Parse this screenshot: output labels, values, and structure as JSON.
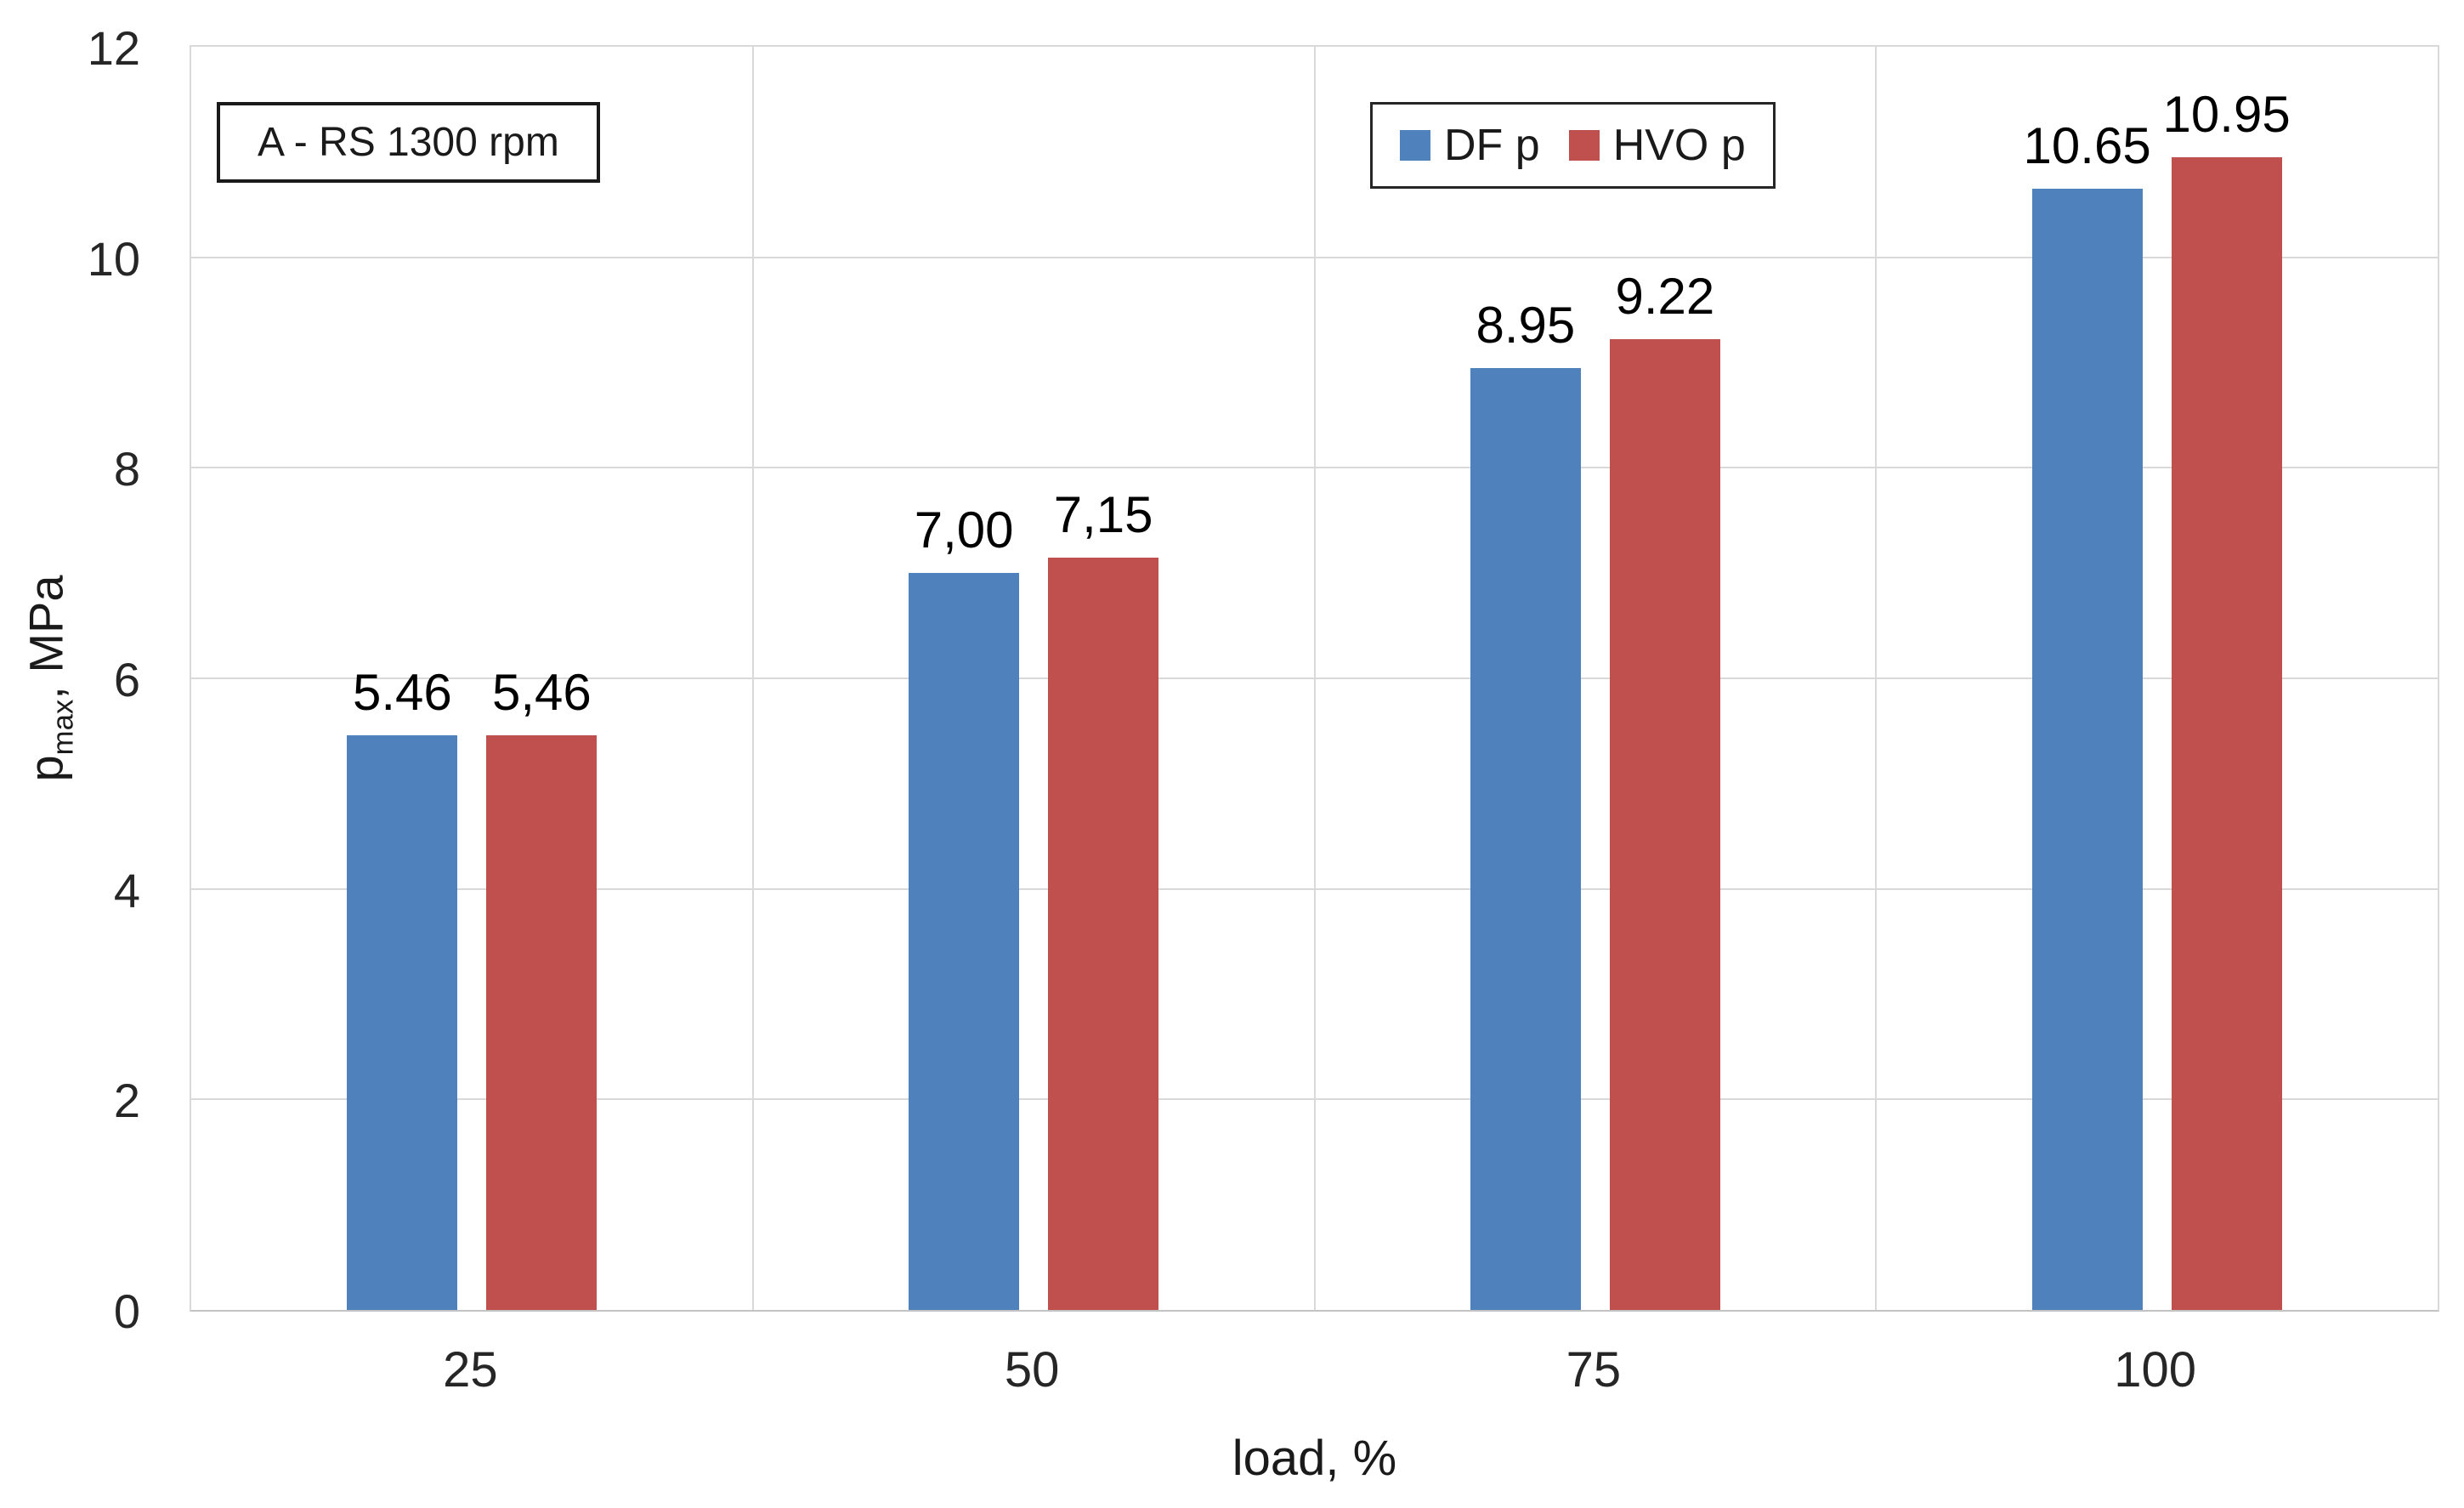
{
  "chart_data": {
    "type": "bar",
    "categories": [
      "25",
      "50",
      "75",
      "100"
    ],
    "series": [
      {
        "name": "DF p",
        "color": "#4F81BD",
        "values": [
          5.46,
          7.0,
          8.95,
          10.65
        ],
        "value_labels": [
          "5.46",
          "7,00",
          "8.95",
          "10.65"
        ]
      },
      {
        "name": "HVO p",
        "color": "#C0504D",
        "values": [
          5.46,
          7.15,
          9.22,
          10.95
        ],
        "value_labels": [
          "5,46",
          "7,15",
          "9.22",
          "10.95"
        ]
      }
    ],
    "title": "",
    "xlabel": "load, %",
    "ylabel": "pmax, MPa",
    "ylim": [
      0,
      12
    ],
    "yticks": [
      0,
      2,
      4,
      6,
      8,
      10,
      12
    ],
    "grid": true,
    "legend_position": "top-center",
    "annotation": "A - RS 1300 rpm"
  },
  "axes": {
    "y_symbol": "p",
    "y_subscript": "max",
    "y_unit_suffix": ", MPa",
    "x_title": "load, %"
  },
  "colors": {
    "df_blue": "#4F81BD",
    "hvo_red": "#C0504D",
    "gridline": "#D9D9D9",
    "text": "#1A1A1A"
  }
}
